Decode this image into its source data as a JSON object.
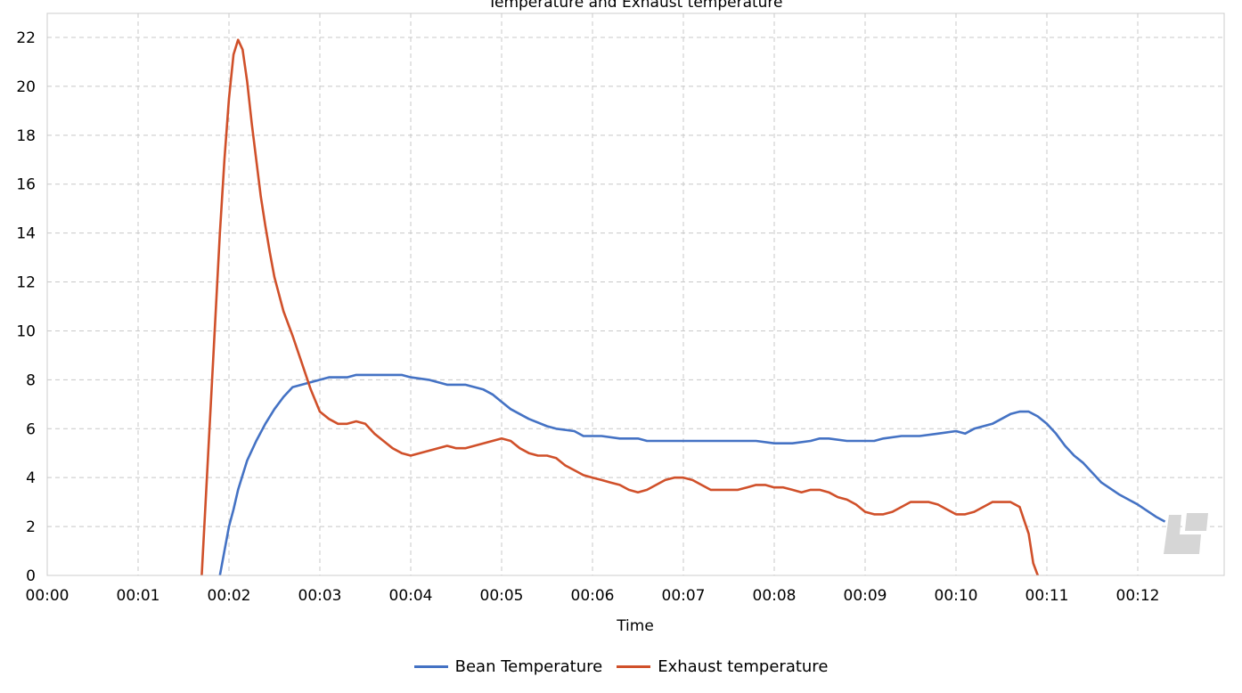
{
  "chart_data": {
    "type": "line",
    "title": "Temperature and Exhaust temperature",
    "xlabel": "Time",
    "ylabel": "",
    "x_ticks": [
      "00:00",
      "00:01",
      "00:02",
      "00:03",
      "00:04",
      "00:05",
      "00:06",
      "00:07",
      "00:08",
      "00:09",
      "00:10",
      "00:11",
      "00:12"
    ],
    "xlim": [
      0,
      13
    ],
    "ylim": [
      0,
      23
    ],
    "y_ticks": [
      0,
      2,
      4,
      6,
      8,
      10,
      12,
      14,
      16,
      18,
      20,
      22
    ],
    "grid": true,
    "legend_position": "bottom",
    "series": [
      {
        "name": "Bean Temperature",
        "color": "#4472c4",
        "x": [
          1.9,
          1.95,
          2.0,
          2.05,
          2.1,
          2.15,
          2.2,
          2.3,
          2.4,
          2.5,
          2.6,
          2.7,
          2.8,
          2.9,
          3.0,
          3.1,
          3.2,
          3.3,
          3.4,
          3.5,
          3.7,
          3.9,
          4.0,
          4.2,
          4.4,
          4.5,
          4.6,
          4.8,
          4.9,
          5.0,
          5.1,
          5.2,
          5.3,
          5.5,
          5.6,
          5.8,
          5.9,
          6.0,
          6.1,
          6.3,
          6.5,
          6.6,
          6.8,
          7.0,
          7.2,
          7.4,
          7.6,
          7.8,
          8.0,
          8.2,
          8.4,
          8.5,
          8.6,
          8.8,
          9.0,
          9.1,
          9.2,
          9.4,
          9.6,
          9.8,
          10.0,
          10.1,
          10.2,
          10.3,
          10.4,
          10.5,
          10.6,
          10.7,
          10.8,
          10.9,
          11.0,
          11.1,
          11.2,
          11.3,
          11.4,
          11.5,
          11.6,
          11.8,
          12.0,
          12.2,
          12.3
        ],
        "y": [
          0,
          1.0,
          2.0,
          2.7,
          3.5,
          4.1,
          4.7,
          5.5,
          6.2,
          6.8,
          7.3,
          7.7,
          7.8,
          7.9,
          8.0,
          8.1,
          8.1,
          8.1,
          8.2,
          8.2,
          8.2,
          8.2,
          8.1,
          8.0,
          7.8,
          7.8,
          7.8,
          7.6,
          7.4,
          7.1,
          6.8,
          6.6,
          6.4,
          6.1,
          6.0,
          5.9,
          5.7,
          5.7,
          5.7,
          5.6,
          5.6,
          5.5,
          5.5,
          5.5,
          5.5,
          5.5,
          5.5,
          5.5,
          5.4,
          5.4,
          5.5,
          5.6,
          5.6,
          5.5,
          5.5,
          5.5,
          5.6,
          5.7,
          5.7,
          5.8,
          5.9,
          5.8,
          6.0,
          6.1,
          6.2,
          6.4,
          6.6,
          6.7,
          6.7,
          6.5,
          6.2,
          5.8,
          5.3,
          4.9,
          4.6,
          4.2,
          3.8,
          3.3,
          2.9,
          2.4,
          2.2
        ]
      },
      {
        "name": "Exhaust temperature",
        "color": "#d0502a",
        "x": [
          1.7,
          1.75,
          1.8,
          1.85,
          1.9,
          1.95,
          2.0,
          2.05,
          2.1,
          2.15,
          2.2,
          2.25,
          2.3,
          2.35,
          2.4,
          2.45,
          2.5,
          2.6,
          2.7,
          2.8,
          2.9,
          3.0,
          3.1,
          3.2,
          3.3,
          3.4,
          3.5,
          3.6,
          3.7,
          3.8,
          3.9,
          4.0,
          4.1,
          4.2,
          4.3,
          4.4,
          4.5,
          4.6,
          4.7,
          4.8,
          4.9,
          5.0,
          5.1,
          5.2,
          5.3,
          5.4,
          5.5,
          5.6,
          5.7,
          5.8,
          5.9,
          6.0,
          6.1,
          6.2,
          6.3,
          6.4,
          6.5,
          6.6,
          6.7,
          6.8,
          6.9,
          7.0,
          7.1,
          7.2,
          7.3,
          7.4,
          7.5,
          7.6,
          7.7,
          7.8,
          7.9,
          8.0,
          8.1,
          8.2,
          8.3,
          8.4,
          8.5,
          8.6,
          8.7,
          8.8,
          8.9,
          9.0,
          9.1,
          9.2,
          9.3,
          9.4,
          9.5,
          9.6,
          9.7,
          9.8,
          9.9,
          10.0,
          10.1,
          10.2,
          10.3,
          10.4,
          10.5,
          10.6,
          10.7,
          10.8,
          10.85,
          10.9
        ],
        "y": [
          0,
          3.5,
          7.0,
          10.5,
          14.0,
          17.0,
          19.5,
          21.3,
          21.9,
          21.5,
          20.2,
          18.5,
          17.0,
          15.5,
          14.3,
          13.2,
          12.2,
          10.8,
          9.8,
          8.7,
          7.6,
          6.7,
          6.4,
          6.2,
          6.2,
          6.3,
          6.2,
          5.8,
          5.5,
          5.2,
          5.0,
          4.9,
          5.0,
          5.1,
          5.2,
          5.3,
          5.2,
          5.2,
          5.3,
          5.4,
          5.5,
          5.6,
          5.5,
          5.2,
          5.0,
          4.9,
          4.9,
          4.8,
          4.5,
          4.3,
          4.1,
          4.0,
          3.9,
          3.8,
          3.7,
          3.5,
          3.4,
          3.5,
          3.7,
          3.9,
          4.0,
          4.0,
          3.9,
          3.7,
          3.5,
          3.5,
          3.5,
          3.5,
          3.6,
          3.7,
          3.7,
          3.6,
          3.6,
          3.5,
          3.4,
          3.5,
          3.5,
          3.4,
          3.2,
          3.1,
          2.9,
          2.6,
          2.5,
          2.5,
          2.6,
          2.8,
          3.0,
          3.0,
          3.0,
          2.9,
          2.7,
          2.5,
          2.5,
          2.6,
          2.8,
          3.0,
          3.0,
          3.0,
          2.8,
          1.7,
          0.5,
          0
        ]
      }
    ]
  }
}
